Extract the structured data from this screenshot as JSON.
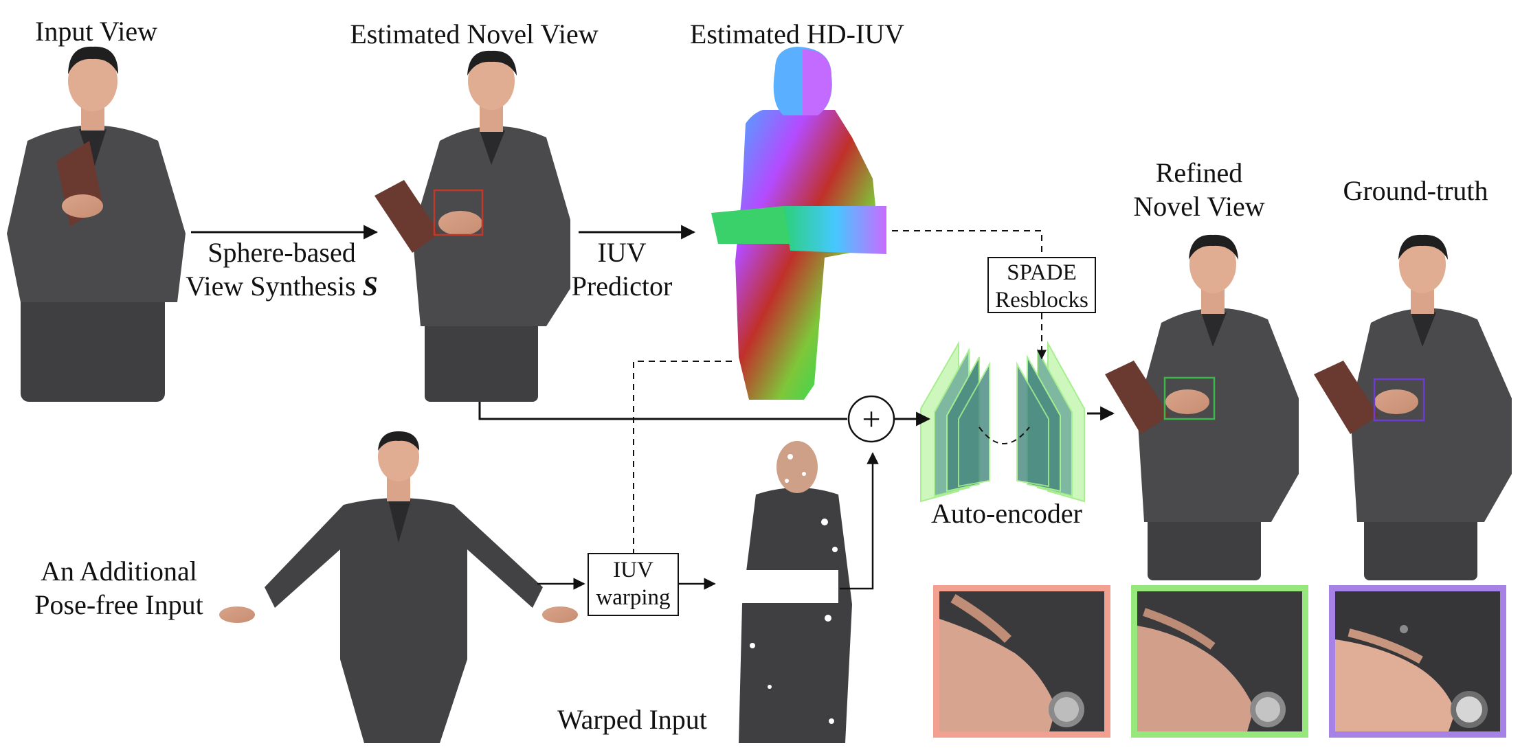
{
  "labels": {
    "input_view": "Input View",
    "estimated_novel_view": "Estimated Novel View",
    "estimated_hd_iuv": "Estimated HD-IUV",
    "refined_line1": "Refined",
    "refined_line2": "Novel View",
    "ground_truth": "Ground-truth",
    "sphere_line1": "Sphere-based",
    "sphere_line2": "View Synthesis ",
    "sphere_symbol": "S",
    "iuv_predictor_line1": "IUV",
    "iuv_predictor_line2": "Predictor",
    "spade_line1": "SPADE",
    "spade_line2": "Resblocks",
    "auto_encoder": "Auto-encoder",
    "additional_line1": "An Additional",
    "additional_line2": "Pose-free Input",
    "iuv_warping_line1": "IUV",
    "iuv_warping_line2": "warping",
    "warped_input": "Warped Input",
    "plus_symbol": "+"
  },
  "colors": {
    "inset_red": "#f2a090",
    "inset_green": "#96e87c",
    "inset_purple": "#a782e6",
    "crop_red": "#c0392b",
    "crop_green": "#3cb84a",
    "crop_purple": "#6f3bd1",
    "encoder_fill": "#4f8f84",
    "encoder_edge": "#a6ee8e"
  }
}
